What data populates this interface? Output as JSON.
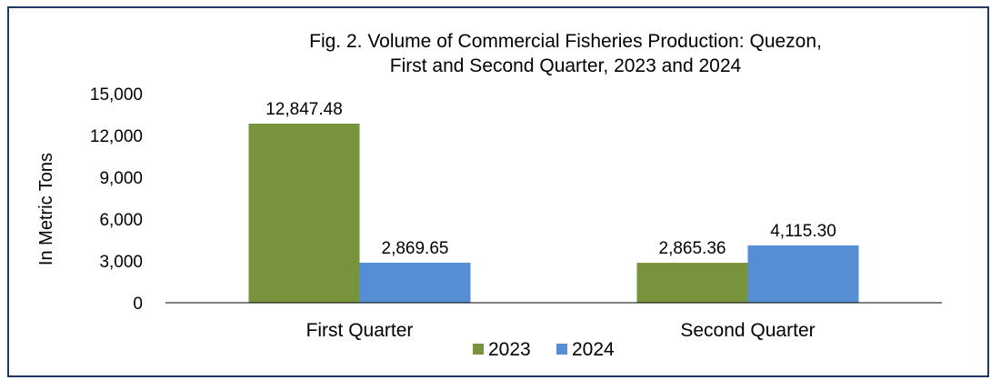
{
  "chart_data": {
    "type": "bar",
    "title_lines": [
      "Fig. 2. Volume of Commercial Fisheries  Production: Quezon,",
      "First and Second Quarter, 2023 and 2024"
    ],
    "ylabel": "In Metric Tons",
    "xlabel": "",
    "categories": [
      "First Quarter",
      "Second Quarter"
    ],
    "series": [
      {
        "name": "2023",
        "values": [
          12847.48,
          2865.36
        ],
        "labels": [
          "12,847.48",
          "2,865.36"
        ],
        "color": "#77933c"
      },
      {
        "name": "2024",
        "values": [
          2869.65,
          4115.3
        ],
        "labels": [
          "2,869.65",
          "4,115.30"
        ],
        "color": "#558ed5"
      }
    ],
    "ylim": [
      0,
      15000
    ],
    "yticks": [
      0,
      3000,
      6000,
      9000,
      12000,
      15000
    ],
    "ytick_labels": [
      "0",
      "3,000",
      "6,000",
      "9,000",
      "12,000",
      "15,000"
    ],
    "grid": false,
    "legend_position": "bottom"
  },
  "colors": {
    "frame_border": "#1f3864",
    "axis": "#000000"
  }
}
